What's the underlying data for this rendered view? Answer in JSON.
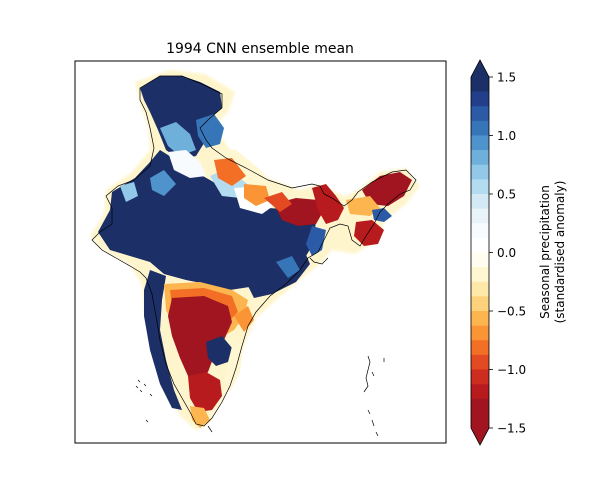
{
  "title": "1994 CNN ensemble mean",
  "colorbar": {
    "label_line1": "Seasonal precipitation",
    "label_line2": "(standardised anomaly)",
    "ticks": [
      {
        "value": 1.5,
        "label": "1.5"
      },
      {
        "value": 1.0,
        "label": "1.0"
      },
      {
        "value": 0.5,
        "label": "0.5"
      },
      {
        "value": 0.0,
        "label": "0.0"
      },
      {
        "value": -0.5,
        "label": "−0.5"
      },
      {
        "value": -1.0,
        "label": "−1.0"
      },
      {
        "value": -1.5,
        "label": "−1.5"
      }
    ],
    "range": [
      -1.5,
      1.5
    ],
    "extend": "both",
    "levels": [
      {
        "from": 1.375,
        "to": 1.5,
        "color": "#1c2f66"
      },
      {
        "from": 1.25,
        "to": 1.375,
        "color": "#233f8c"
      },
      {
        "from": 1.125,
        "to": 1.25,
        "color": "#2b5aa6"
      },
      {
        "from": 1.0,
        "to": 1.125,
        "color": "#3575b8"
      },
      {
        "from": 0.875,
        "to": 1.0,
        "color": "#4f93cc"
      },
      {
        "from": 0.75,
        "to": 0.875,
        "color": "#6fb0db"
      },
      {
        "from": 0.625,
        "to": 0.75,
        "color": "#92c9e8"
      },
      {
        "from": 0.5,
        "to": 0.625,
        "color": "#b4dcf1"
      },
      {
        "from": 0.375,
        "to": 0.5,
        "color": "#d3eaf6"
      },
      {
        "from": 0.25,
        "to": 0.375,
        "color": "#e8f4fa"
      },
      {
        "from": 0.125,
        "to": 0.25,
        "color": "#f7fbfd"
      },
      {
        "from": 0.0,
        "to": 0.125,
        "color": "#ffffff"
      },
      {
        "from": -0.125,
        "to": 0.0,
        "color": "#fffdf0"
      },
      {
        "from": -0.25,
        "to": -0.125,
        "color": "#fff6d2"
      },
      {
        "from": -0.375,
        "to": -0.25,
        "color": "#ffe9a8"
      },
      {
        "from": -0.5,
        "to": -0.375,
        "color": "#fed27a"
      },
      {
        "from": -0.625,
        "to": -0.5,
        "color": "#fdb54f"
      },
      {
        "from": -0.75,
        "to": -0.625,
        "color": "#fb9434"
      },
      {
        "from": -0.875,
        "to": -0.75,
        "color": "#f36f26"
      },
      {
        "from": -1.0,
        "to": -0.875,
        "color": "#e34a21"
      },
      {
        "from": -1.125,
        "to": -1.0,
        "color": "#ce2c1f"
      },
      {
        "from": -1.25,
        "to": -1.125,
        "color": "#b81b1e"
      },
      {
        "from": -1.5,
        "to": -1.25,
        "color": "#a01520"
      }
    ],
    "over_color": "#1c2f66",
    "under_color": "#a01520"
  },
  "map": {
    "region": "India",
    "projection": "lat-lon",
    "coastline_color": "#000000"
  }
}
